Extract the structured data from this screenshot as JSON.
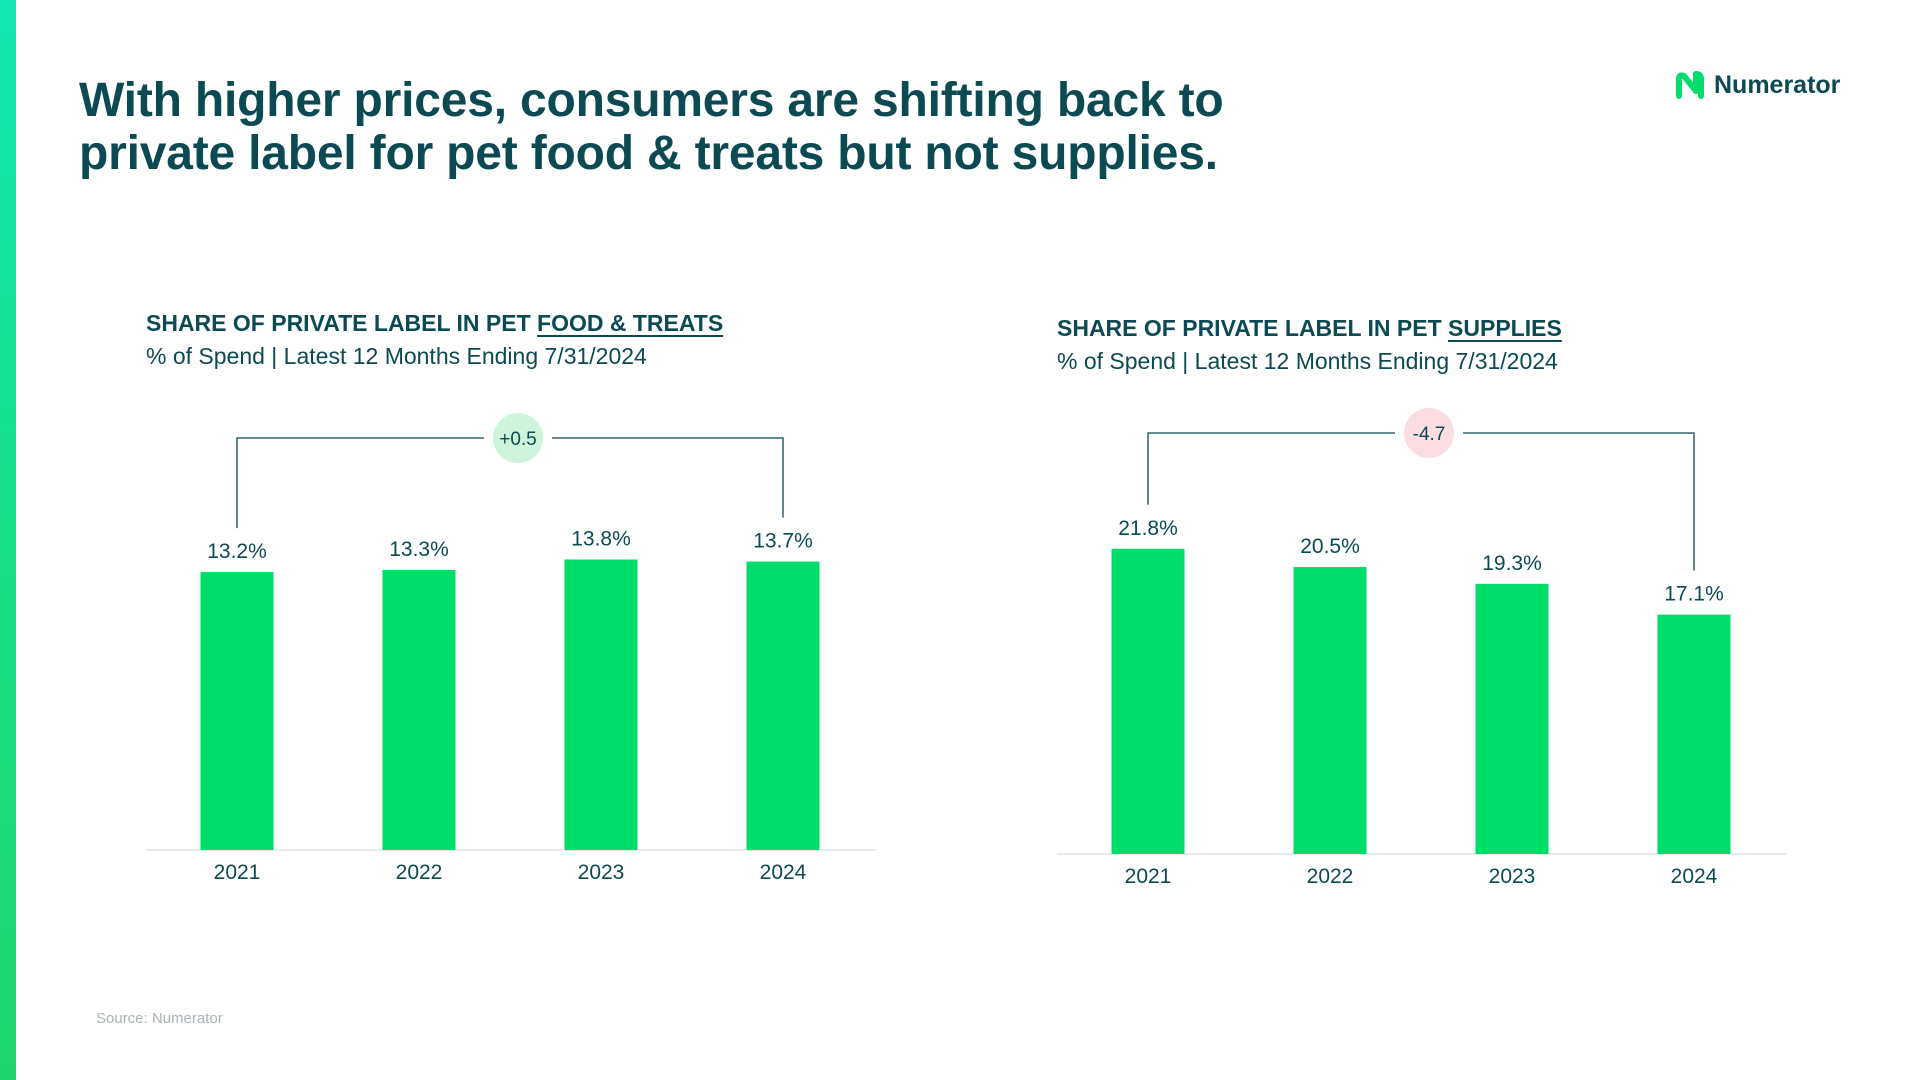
{
  "title": {
    "line1": "With higher prices, consumers are shifting back to",
    "line2": "private label for pet food & treats but not supplies."
  },
  "brand": {
    "name": "Numerator",
    "accent": "#00DD6B",
    "dark": "#0B4A52"
  },
  "source": "Source: Numerator",
  "chart_data": [
    {
      "type": "bar",
      "title": "SHARE OF PRIVATE LABEL IN PET FOOD & TREATS",
      "title_prefix": "SHARE OF PRIVATE LABEL IN PET",
      "title_emph": "FOOD & TREATS",
      "subtitle": "% of Spend | Latest 12 Months Ending 7/31/2024",
      "categories": [
        "2021",
        "2022",
        "2023",
        "2024"
      ],
      "values": [
        13.2,
        13.3,
        13.8,
        13.7
      ],
      "data_labels": [
        "13.2%",
        "13.3%",
        "13.8%",
        "13.7%"
      ],
      "change_label": "+0.5",
      "change_color": "#cdf5dc",
      "bar_color": "#00DD6B",
      "ylim": [
        0,
        15.2
      ]
    },
    {
      "type": "bar",
      "title": "SHARE OF PRIVATE LABEL IN PET SUPPLIES",
      "title_prefix": "SHARE OF PRIVATE LABEL IN PET",
      "title_emph": "SUPPLIES",
      "subtitle": "% of Spend | Latest 12 Months Ending 7/31/2024",
      "categories": [
        "2021",
        "2022",
        "2023",
        "2024"
      ],
      "values": [
        21.8,
        20.5,
        19.3,
        17.1
      ],
      "data_labels": [
        "21.8%",
        "20.5%",
        "19.3%",
        "17.1%"
      ],
      "change_label": "-4.7",
      "change_color": "#fcdde1",
      "bar_color": "#00DD6B",
      "ylim": [
        0,
        24.0
      ]
    }
  ]
}
